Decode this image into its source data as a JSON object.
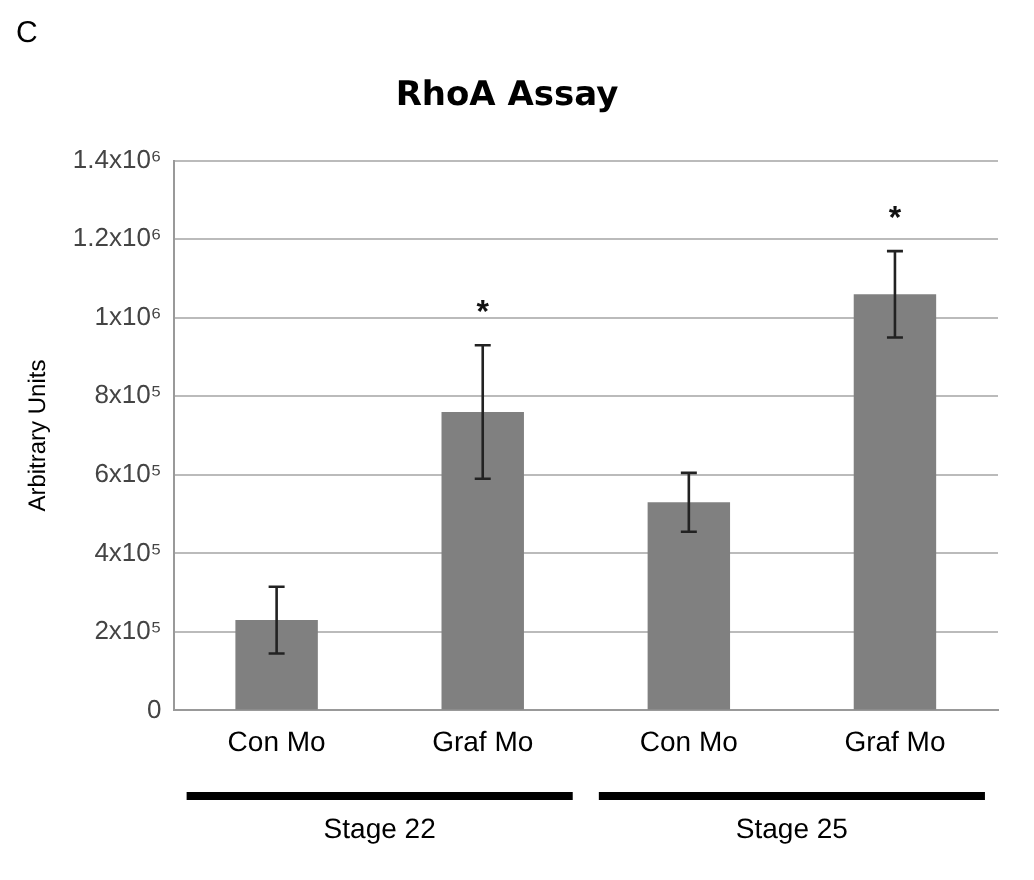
{
  "chart_data": {
    "type": "bar",
    "title": "RhoA Assay",
    "ylabel": "Arbitrary Units",
    "categories": [
      "Con Mo",
      "Graf Mo",
      "Con Mo",
      "Graf Mo"
    ],
    "values": [
      230000,
      760000,
      530000,
      1060000
    ],
    "errors": [
      85000,
      170000,
      75000,
      110000
    ],
    "value_labels": [
      null,
      "*",
      null,
      "*"
    ],
    "color": "#808080",
    "ylim": [
      0,
      1400000
    ],
    "yticks": [
      0,
      {
        "value": 200000,
        "label": "2x10⁵"
      },
      {
        "value": 400000,
        "label": "4x10⁵"
      },
      {
        "value": 600000,
        "label": "6x10⁵"
      },
      {
        "value": 800000,
        "label": "8x10⁵"
      },
      {
        "value": 1000000,
        "label": "1x10⁶"
      },
      {
        "value": 1200000,
        "label": "1.2x10⁶"
      },
      {
        "value": 1400000,
        "label": "1.4x10⁶"
      }
    ],
    "grid": "y",
    "annotations": [
      "C",
      "Stage 22",
      "Stage 25"
    ]
  }
}
